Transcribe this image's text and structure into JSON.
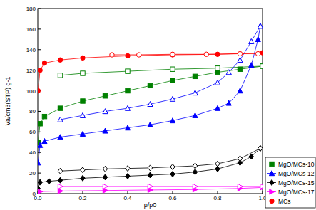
{
  "chart_data": {
    "type": "scatter",
    "x_label": "p/p0",
    "y_label": "Va/cm3(STP) g-1",
    "xlim": [
      0,
      1
    ],
    "ylim": [
      0,
      180
    ],
    "xticks": [
      {
        "value": 0,
        "label": "0.0"
      },
      {
        "value": 0.2,
        "label": "0.2"
      },
      {
        "value": 0.4,
        "label": "0.4"
      },
      {
        "value": 0.6,
        "label": "0.6"
      },
      {
        "value": 0.8,
        "label": "0.8"
      },
      {
        "value": 1,
        "label": "1.0"
      }
    ],
    "yticks": [
      0,
      20,
      40,
      60,
      80,
      100,
      120,
      140,
      160,
      180
    ],
    "grid": false,
    "legend": "right",
    "line_style": "solid",
    "series": [
      {
        "name": "MgO/MCs-10",
        "color": "#008000",
        "marker": "square",
        "x": [
          0.001,
          0.01,
          0.03,
          0.1,
          0.2,
          0.3,
          0.4,
          0.5,
          0.6,
          0.7,
          0.8,
          0.9,
          1.0
        ],
        "values": [
          50,
          68,
          75,
          83,
          90,
          95,
          100,
          105,
          110,
          114,
          118,
          121,
          124
        ],
        "desorption_x": [
          0.1,
          0.2,
          0.4,
          0.6,
          0.8,
          1.0
        ],
        "desorption_values": [
          115,
          117,
          119,
          121,
          122,
          124
        ]
      },
      {
        "name": "MgO/MCs-12",
        "color": "#0000ff",
        "marker": "triangle",
        "x": [
          0.001,
          0.01,
          0.03,
          0.1,
          0.2,
          0.3,
          0.4,
          0.5,
          0.6,
          0.7,
          0.8,
          0.85,
          0.9,
          0.95,
          0.98,
          0.99
        ],
        "values": [
          30,
          47,
          51,
          55,
          58,
          61,
          64,
          67,
          71,
          76,
          83,
          88,
          100,
          125,
          150,
          163
        ],
        "desorption_x": [
          0.1,
          0.2,
          0.3,
          0.4,
          0.5,
          0.6,
          0.7,
          0.8,
          0.85,
          0.9,
          0.95,
          0.99
        ],
        "desorption_values": [
          72,
          76,
          80,
          83,
          87,
          92,
          98,
          108,
          118,
          130,
          148,
          163
        ]
      },
      {
        "name": "MgO/MCs-15",
        "color": "#000000",
        "marker": "diamond",
        "x": [
          0.001,
          0.01,
          0.05,
          0.1,
          0.2,
          0.3,
          0.4,
          0.5,
          0.6,
          0.7,
          0.8,
          0.9,
          0.95,
          0.99
        ],
        "values": [
          5,
          11,
          12,
          13,
          15,
          16,
          17,
          18,
          19,
          21,
          24,
          30,
          36,
          44
        ],
        "desorption_x": [
          0.1,
          0.2,
          0.3,
          0.4,
          0.5,
          0.6,
          0.7,
          0.8,
          0.9,
          0.99
        ],
        "desorption_values": [
          22,
          23,
          24,
          24.5,
          25,
          26,
          27,
          29,
          34,
          44
        ]
      },
      {
        "name": "MgO/MCs-17",
        "color": "#ff00ff",
        "marker": "triangle-right",
        "x": [
          0.01,
          0.1,
          0.3,
          0.5,
          0.7,
          0.9,
          1.0
        ],
        "values": [
          2,
          2.5,
          3,
          3.5,
          4,
          5,
          6
        ],
        "desorption_x": [
          0.1,
          0.3,
          0.5,
          0.7,
          0.9,
          1.0
        ],
        "desorption_values": [
          7,
          7,
          7,
          7,
          7,
          7
        ]
      },
      {
        "name": "MCs",
        "color": "#ff0000",
        "marker": "circle",
        "x": [
          0.001,
          0.01,
          0.03,
          0.1,
          0.2,
          0.4,
          0.6,
          0.8,
          1.0
        ],
        "values": [
          100,
          120,
          127,
          130,
          132,
          134,
          135,
          135.5,
          137
        ],
        "desorption_x": [
          0.33,
          0.45,
          0.6,
          0.75,
          0.9,
          0.98
        ],
        "desorption_values": [
          135,
          135,
          135.5,
          135.5,
          136,
          136
        ]
      }
    ]
  }
}
